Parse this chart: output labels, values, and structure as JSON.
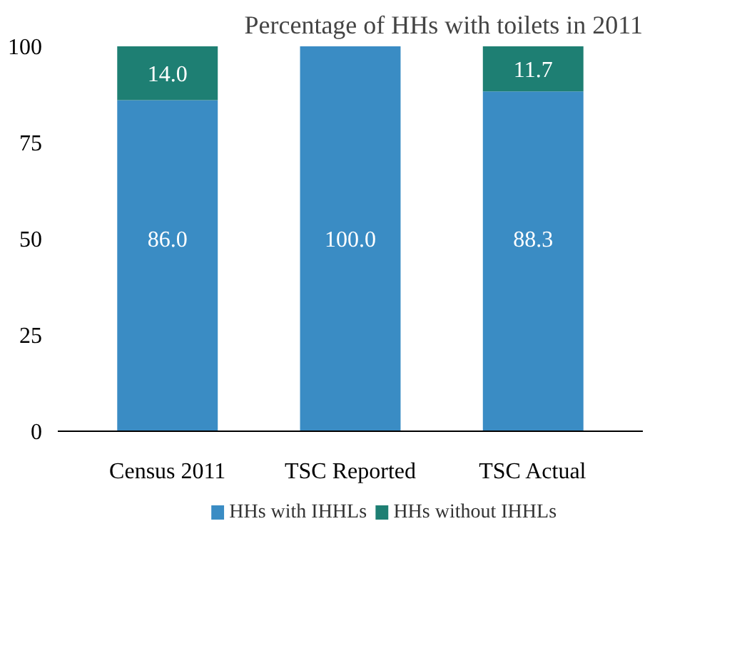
{
  "chart_data": {
    "type": "bar",
    "stacked": true,
    "title": "Percentage of HHs with toilets in 2011",
    "categories": [
      "Census 2011",
      "TSC Reported",
      "TSC Actual"
    ],
    "series": [
      {
        "name": "HHs with IHHLs",
        "color": "#3a8cc4",
        "values": [
          86.0,
          100.0,
          88.3
        ],
        "value_labels": [
          "86.0",
          "100.0",
          "88.3"
        ]
      },
      {
        "name": "HHs without IHHLs",
        "color": "#1e7f73",
        "values": [
          14.0,
          null,
          11.7
        ],
        "value_labels": [
          "14.0",
          null,
          "11.7"
        ]
      }
    ],
    "ylim": [
      0,
      100
    ],
    "yticks": [
      0,
      25,
      50,
      75,
      100
    ],
    "grid": false,
    "legend": "bottom",
    "data_labels": true
  }
}
